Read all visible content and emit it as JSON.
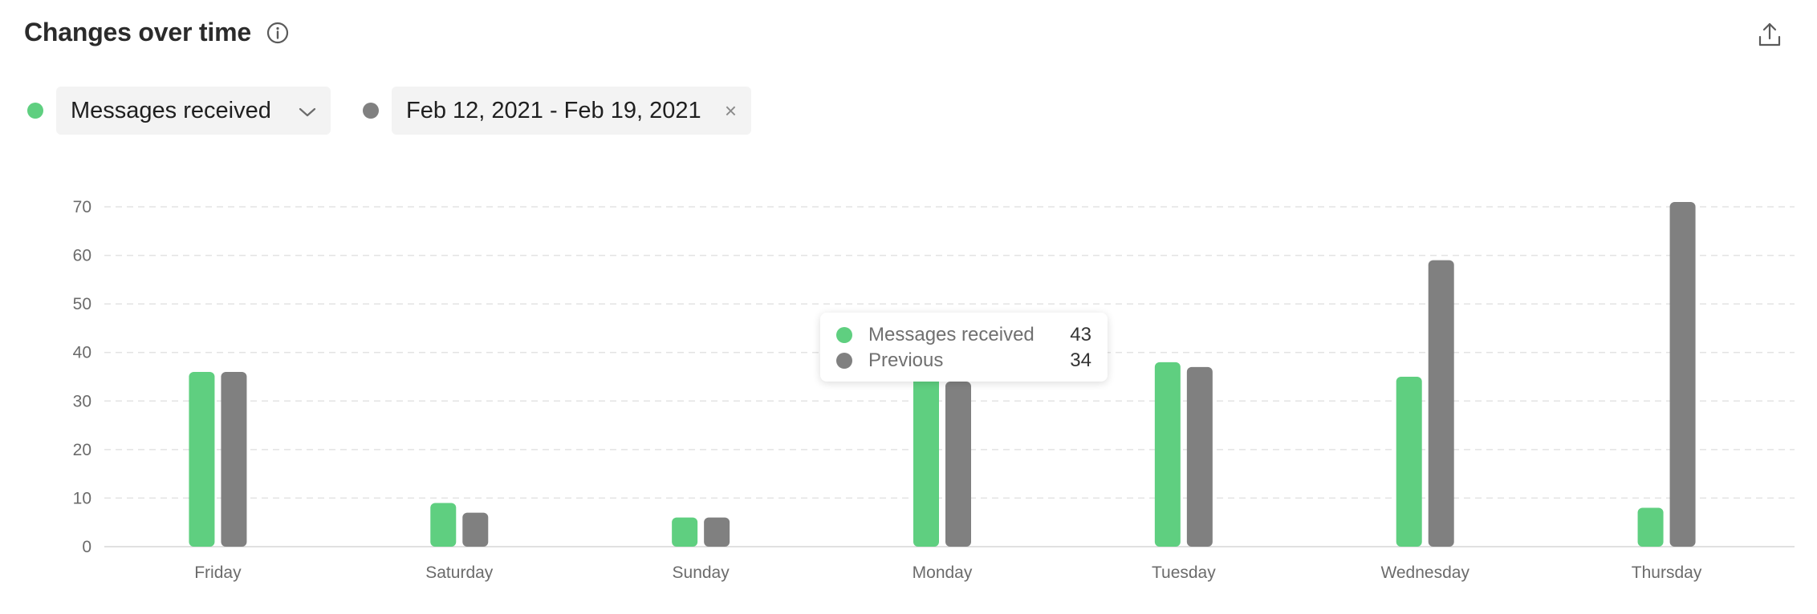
{
  "header": {
    "title": "Changes over time",
    "info_icon": "info-icon",
    "export_icon": "upload-icon"
  },
  "controls": {
    "metric_label": "Messages received",
    "metric_color": "#5fcf80",
    "range_label": "Feb 12, 2021 - Feb 19, 2021",
    "range_color": "#808080",
    "clear_label": "×"
  },
  "tooltip": {
    "rows": [
      {
        "name": "Messages received",
        "value": "43",
        "color": "#5fcf80"
      },
      {
        "name": "Previous",
        "value": "34",
        "color": "#808080"
      }
    ]
  },
  "chart_data": {
    "type": "bar",
    "categories": [
      "Friday",
      "Saturday",
      "Sunday",
      "Monday",
      "Tuesday",
      "Wednesday",
      "Thursday"
    ],
    "series": [
      {
        "name": "Messages received",
        "color": "#5fcf80",
        "values": [
          36,
          9,
          6,
          43,
          38,
          35,
          8
        ]
      },
      {
        "name": "Previous",
        "color": "#808080",
        "values": [
          36,
          7,
          6,
          34,
          37,
          59,
          71
        ]
      }
    ],
    "yticks": [
      0,
      10,
      20,
      30,
      40,
      50,
      60,
      70
    ],
    "ylim": [
      0,
      70
    ],
    "grid": true
  }
}
